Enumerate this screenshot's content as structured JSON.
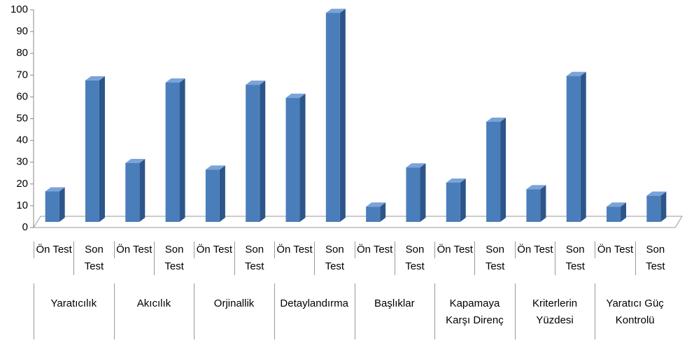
{
  "chart_data": {
    "type": "bar",
    "categories": [
      "Ön Test",
      "Son Test",
      "Ön Test",
      "Son Test",
      "Ön Test",
      "Son Test",
      "Ön Test",
      "Son Test",
      "Ön Test",
      "Son Test",
      "Ön Test",
      "Son Test",
      "Ön Test",
      "Son Test",
      "Ön Test",
      "Son Test"
    ],
    "groups": [
      "Yaratıcılık",
      "Akıcılık",
      "Orjinallik",
      "Detaylandırma",
      "Başlıklar",
      "Kapamaya Karşı Direnç",
      "Kriterlerin Yüzdesi",
      "Yaratıcı Güç Kontrolü"
    ],
    "values": [
      14,
      65,
      27,
      64,
      24,
      63,
      57,
      96,
      7,
      25,
      18,
      46,
      15,
      67,
      7,
      12
    ],
    "color": "#4a7ebb",
    "ylim": [
      0,
      100
    ],
    "yticks": [
      0,
      10,
      20,
      30,
      40,
      50,
      60,
      70,
      80,
      90,
      100
    ]
  }
}
